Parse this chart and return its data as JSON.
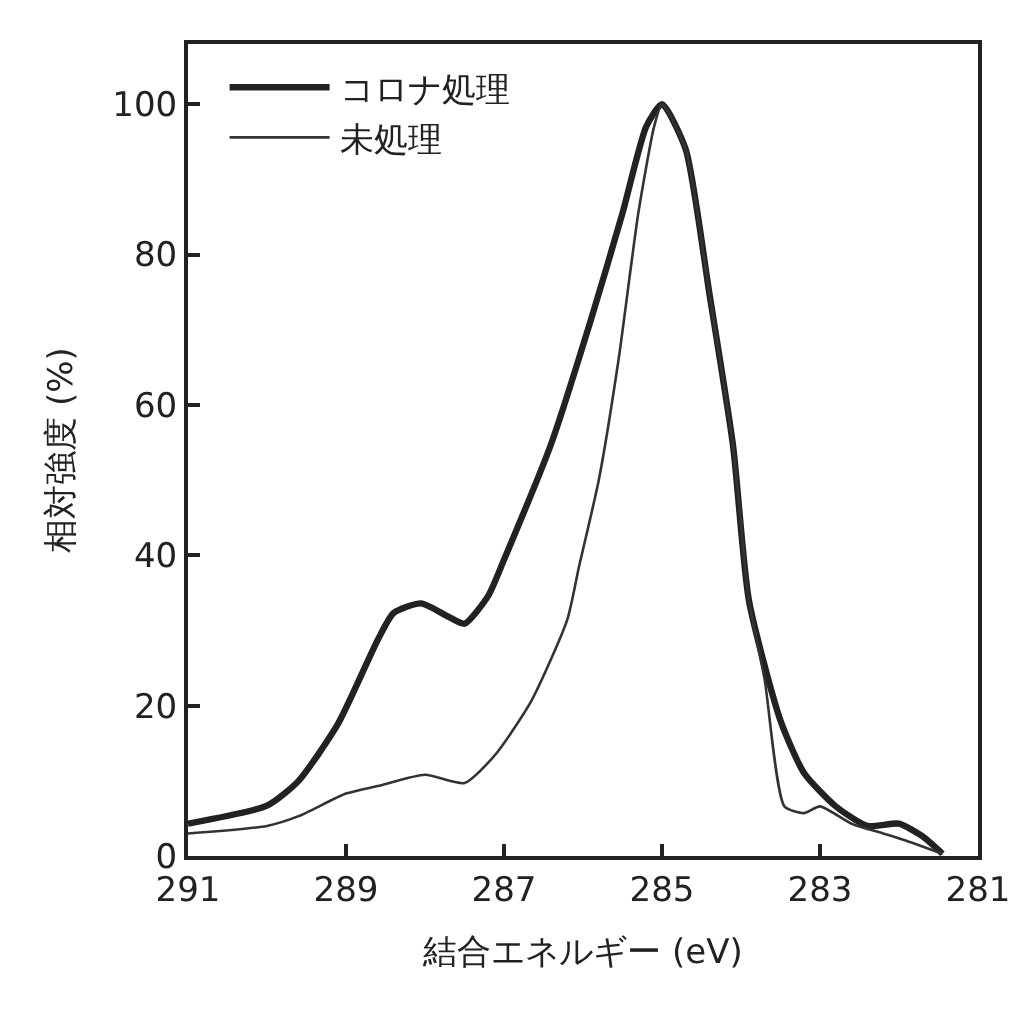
{
  "chart_data": {
    "type": "line",
    "xlabel": "結合エネルギー (eV)",
    "ylabel": "相対強度 (%)",
    "xlim": [
      291,
      281
    ],
    "xticks": [
      291,
      289,
      287,
      285,
      283,
      281
    ],
    "ylim": [
      0,
      108
    ],
    "yticks": [
      0,
      20,
      40,
      60,
      80,
      100
    ],
    "legend": "top left",
    "marker": "none",
    "line_style": "solid",
    "series": [
      {
        "name": "コロナ処理",
        "color": "#222222",
        "x": [
          291,
          290.0,
          289.6,
          289.1,
          288.6,
          288.4,
          288.05,
          287.7,
          287.5,
          287.2,
          287.0,
          286.4,
          285.9,
          285.5,
          285.2,
          285.0,
          284.7,
          284.4,
          284.1,
          283.9,
          283.5,
          283.2,
          282.8,
          282.4,
          282.0,
          281.7,
          281.45
        ],
        "values": [
          4.3,
          6.7,
          10,
          17.6,
          28.7,
          32.3,
          33.6,
          31.8,
          30.9,
          34.6,
          39.4,
          54.9,
          71.3,
          85.5,
          97,
          100,
          94,
          74.8,
          54.5,
          34,
          18,
          11,
          6.6,
          4,
          4.3,
          2.6,
          0.3
        ]
      },
      {
        "name": "未処理",
        "color": "#333333",
        "x": [
          291,
          290.0,
          289.6,
          289.0,
          288.6,
          288.0,
          287.5,
          287.1,
          286.65,
          286.2,
          286.05,
          285.8,
          285.55,
          285.3,
          285.1,
          285.0,
          284.7,
          284.4,
          284.1,
          283.9,
          283.7,
          283.45,
          283.2,
          283.0,
          282.6,
          282.2,
          281.9,
          281.45
        ],
        "values": [
          3.0,
          4,
          5.3,
          8.3,
          9.3,
          10.8,
          9.7,
          13.6,
          20.7,
          31.4,
          38.5,
          50,
          66,
          85.5,
          97,
          100,
          94,
          74.8,
          54.5,
          34,
          23.4,
          6.6,
          5.7,
          6.6,
          4.3,
          3,
          2,
          0.3
        ]
      }
    ]
  }
}
